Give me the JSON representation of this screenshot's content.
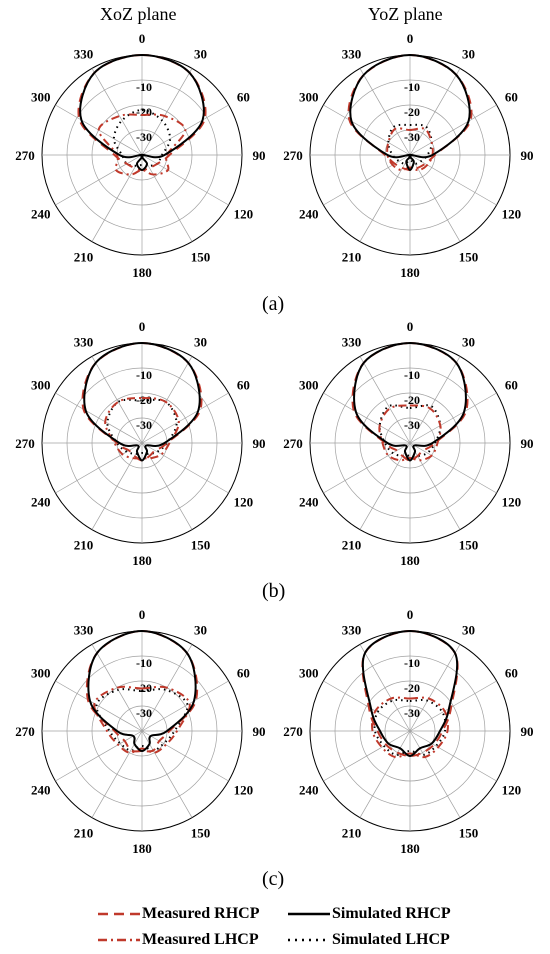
{
  "titles": {
    "left": "XoZ plane",
    "right": "YoZ plane"
  },
  "panel_labels": [
    "(a)",
    "(b)",
    "(c)"
  ],
  "legend": [
    {
      "label": "Measured RHCP",
      "style": "dashed",
      "color": "#c0392b"
    },
    {
      "label": "Simulated RHCP",
      "style": "solid",
      "color": "#000000"
    },
    {
      "label": "Measured LHCP",
      "style": "dashdot",
      "color": "#c0392b"
    },
    {
      "label": "Simulated LHCP",
      "style": "dotted",
      "color": "#000000"
    }
  ],
  "colors": {
    "measured": "#c0392b",
    "simulated": "#000000",
    "grid": "#a0a0a0"
  },
  "chart_data": {
    "type": "polar",
    "angle_ticks": [
      0,
      30,
      60,
      90,
      120,
      150,
      180,
      210,
      240,
      270,
      300,
      330
    ],
    "radial_ticks": [
      -10,
      -20,
      -30
    ],
    "r_range": [
      -40,
      0
    ],
    "grid": true,
    "legend_position": "bottom",
    "panels": [
      {
        "panel": "(a)",
        "plane": "XoZ plane",
        "rhcp_simulated": {
          "angle": [
            0,
            30,
            60,
            90,
            120,
            150,
            180,
            210,
            240,
            270,
            300,
            330
          ],
          "value": [
            0,
            -2,
            -12,
            -31,
            -40,
            -36,
            -34,
            -36,
            -40,
            -31,
            -12,
            -2
          ]
        },
        "rhcp_measured": {
          "angle": [
            0,
            30,
            60,
            90,
            120,
            150,
            180,
            210,
            240,
            270,
            300,
            330
          ],
          "value": [
            0,
            -2,
            -11,
            -29,
            -33,
            -34,
            -34,
            -34,
            -33,
            -29,
            -11,
            -2
          ]
        },
        "lhcp_simulated": {
          "angle": [
            0,
            30,
            60,
            90,
            120,
            150,
            180,
            210,
            240,
            270,
            300,
            330
          ],
          "value": [
            -22,
            -24,
            -27,
            -32,
            -33,
            -35,
            -36,
            -35,
            -33,
            -32,
            -27,
            -24
          ]
        },
        "lhcp_measured": {
          "angle": [
            0,
            30,
            60,
            90,
            120,
            150,
            180,
            210,
            240,
            270,
            300,
            330
          ],
          "value": [
            -24,
            -22,
            -20,
            -30,
            -28,
            -31,
            -34,
            -31,
            -28,
            -30,
            -20,
            -22
          ]
        }
      },
      {
        "panel": "(a)",
        "plane": "YoZ plane",
        "rhcp_simulated": {
          "angle": [
            0,
            30,
            60,
            90,
            120,
            150,
            180,
            210,
            240,
            270,
            300,
            330
          ],
          "value": [
            0,
            -3,
            -13,
            -31,
            -40,
            -37,
            -34,
            -37,
            -40,
            -31,
            -13,
            -3
          ]
        },
        "rhcp_measured": {
          "angle": [
            0,
            30,
            60,
            90,
            120,
            150,
            180,
            210,
            240,
            270,
            300,
            330
          ],
          "value": [
            0,
            -3,
            -12,
            -30,
            -33,
            -34,
            -34,
            -34,
            -33,
            -30,
            -12,
            -3
          ]
        },
        "lhcp_simulated": {
          "angle": [
            0,
            30,
            60,
            90,
            120,
            150,
            180,
            210,
            240,
            270,
            300,
            330
          ],
          "value": [
            -28,
            -27,
            -30,
            -33,
            -35,
            -36,
            -38,
            -36,
            -35,
            -33,
            -30,
            -27
          ]
        },
        "lhcp_measured": {
          "angle": [
            0,
            30,
            60,
            90,
            120,
            150,
            180,
            210,
            240,
            270,
            300,
            330
          ],
          "value": [
            -30,
            -28,
            -30,
            -31,
            -32,
            -33,
            -35,
            -33,
            -32,
            -31,
            -30,
            -28
          ]
        }
      },
      {
        "panel": "(b)",
        "plane": "XoZ plane",
        "rhcp_simulated": {
          "angle": [
            0,
            30,
            60,
            90,
            120,
            150,
            180,
            210,
            240,
            270,
            300,
            330
          ],
          "value": [
            0,
            -3,
            -14,
            -31,
            -38,
            -36,
            -33,
            -36,
            -38,
            -31,
            -14,
            -3
          ]
        },
        "rhcp_measured": {
          "angle": [
            0,
            30,
            60,
            90,
            120,
            150,
            180,
            210,
            240,
            270,
            300,
            330
          ],
          "value": [
            0,
            -3,
            -13,
            -30,
            -34,
            -34,
            -33,
            -34,
            -34,
            -30,
            -13,
            -3
          ]
        },
        "lhcp_simulated": {
          "angle": [
            0,
            30,
            60,
            90,
            120,
            150,
            180,
            210,
            240,
            270,
            300,
            330
          ],
          "value": [
            -23,
            -21,
            -24,
            -30,
            -33,
            -35,
            -36,
            -35,
            -33,
            -30,
            -24,
            -21
          ]
        },
        "lhcp_measured": {
          "angle": [
            0,
            30,
            60,
            90,
            120,
            150,
            180,
            210,
            240,
            270,
            300,
            330
          ],
          "value": [
            -22,
            -21,
            -23,
            -29,
            -31,
            -33,
            -34,
            -33,
            -31,
            -29,
            -23,
            -21
          ]
        }
      },
      {
        "panel": "(b)",
        "plane": "YoZ plane",
        "rhcp_simulated": {
          "angle": [
            0,
            30,
            60,
            90,
            120,
            150,
            180,
            210,
            240,
            270,
            300,
            330
          ],
          "value": [
            0,
            -3,
            -15,
            -31,
            -38,
            -36,
            -33,
            -36,
            -38,
            -31,
            -15,
            -3
          ]
        },
        "rhcp_measured": {
          "angle": [
            0,
            30,
            60,
            90,
            120,
            150,
            180,
            210,
            240,
            270,
            300,
            330
          ],
          "value": [
            0,
            -3,
            -14,
            -30,
            -34,
            -34,
            -33,
            -34,
            -34,
            -30,
            -14,
            -3
          ]
        },
        "lhcp_simulated": {
          "angle": [
            0,
            30,
            60,
            90,
            120,
            150,
            180,
            210,
            240,
            270,
            300,
            330
          ],
          "value": [
            -26,
            -23,
            -26,
            -30,
            -32,
            -34,
            -35,
            -34,
            -32,
            -30,
            -26,
            -23
          ]
        },
        "lhcp_measured": {
          "angle": [
            0,
            30,
            60,
            90,
            120,
            150,
            180,
            210,
            240,
            270,
            300,
            330
          ],
          "value": [
            -25,
            -24,
            -26,
            -29,
            -30,
            -32,
            -34,
            -32,
            -30,
            -29,
            -26,
            -24
          ]
        }
      },
      {
        "panel": "(c)",
        "plane": "XoZ plane",
        "rhcp_simulated": {
          "angle": [
            0,
            30,
            60,
            90,
            120,
            150,
            180,
            210,
            240,
            270,
            300,
            330
          ],
          "value": [
            0,
            -4,
            -16,
            -30,
            -36,
            -34,
            -32,
            -34,
            -36,
            -30,
            -16,
            -4
          ]
        },
        "rhcp_measured": {
          "angle": [
            0,
            30,
            60,
            90,
            120,
            150,
            180,
            210,
            240,
            270,
            300,
            330
          ],
          "value": [
            0,
            -4,
            -15,
            -29,
            -32,
            -31,
            -32,
            -31,
            -32,
            -29,
            -15,
            -4
          ]
        },
        "lhcp_simulated": {
          "angle": [
            0,
            30,
            60,
            90,
            120,
            150,
            180,
            210,
            240,
            270,
            300,
            330
          ],
          "value": [
            -24,
            -21,
            -19,
            -27,
            -30,
            -31,
            -34,
            -31,
            -30,
            -27,
            -19,
            -21
          ]
        },
        "lhcp_measured": {
          "angle": [
            0,
            30,
            60,
            90,
            120,
            150,
            180,
            210,
            240,
            270,
            300,
            330
          ],
          "value": [
            -23,
            -20,
            -18,
            -26,
            -29,
            -30,
            -33,
            -30,
            -29,
            -26,
            -18,
            -20
          ]
        }
      },
      {
        "panel": "(c)",
        "plane": "YoZ plane",
        "rhcp_simulated": {
          "angle": [
            0,
            30,
            60,
            90,
            120,
            150,
            180,
            210,
            240,
            270,
            300,
            330
          ],
          "value": [
            0,
            -4,
            -22,
            -28,
            -30,
            -32,
            -30,
            -32,
            -30,
            -28,
            -22,
            -4
          ]
        },
        "rhcp_measured": {
          "angle": [
            0,
            30,
            60,
            90,
            120,
            150,
            180,
            210,
            240,
            270,
            300,
            330
          ],
          "value": [
            0,
            -4,
            -21,
            -27,
            -29,
            -30,
            -30,
            -30,
            -29,
            -27,
            -21,
            -4
          ]
        },
        "lhcp_simulated": {
          "angle": [
            0,
            30,
            60,
            90,
            120,
            150,
            180,
            210,
            240,
            270,
            300,
            330
          ],
          "value": [
            -28,
            -26,
            -25,
            -26,
            -28,
            -29,
            -32,
            -29,
            -28,
            -26,
            -25,
            -26
          ]
        },
        "lhcp_measured": {
          "angle": [
            0,
            30,
            60,
            90,
            120,
            150,
            180,
            210,
            240,
            270,
            300,
            330
          ],
          "value": [
            -27,
            -25,
            -24,
            -25,
            -27,
            -28,
            -31,
            -28,
            -27,
            -25,
            -24,
            -25
          ]
        }
      }
    ]
  }
}
